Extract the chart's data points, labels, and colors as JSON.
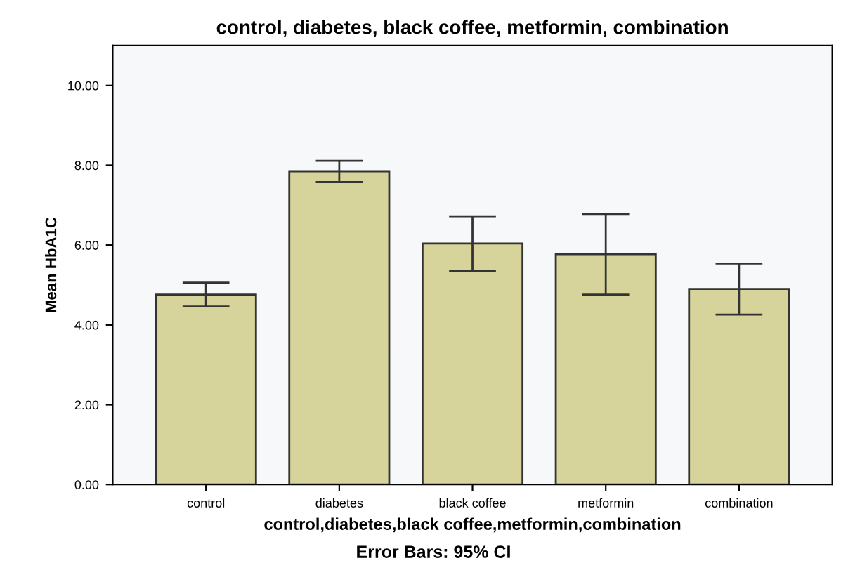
{
  "chart_data": {
    "type": "bar",
    "title": "control, diabetes, black coffee, metformin, combination",
    "xlabel": "control,diabetes,black coffee,metformin,combination",
    "ylabel": "Mean HbA1C",
    "categories": [
      "control",
      "diabetes",
      "black coffee",
      "metformin",
      "combination"
    ],
    "values": [
      4.76,
      7.85,
      6.04,
      5.77,
      4.9
    ],
    "errors": [
      [
        4.46,
        5.06
      ],
      [
        7.58,
        8.11
      ],
      [
        5.36,
        6.72
      ],
      [
        4.76,
        6.78
      ],
      [
        4.26,
        5.54
      ]
    ],
    "color": "#d6d49a",
    "ylim": [
      0,
      11
    ],
    "yticks": [
      {
        "value": 0,
        "label": "0.00"
      },
      {
        "value": 2,
        "label": "2.00"
      },
      {
        "value": 4,
        "label": "4.00"
      },
      {
        "value": 6,
        "label": "6.00"
      },
      {
        "value": 8,
        "label": "8.00"
      },
      {
        "value": 10,
        "label": "10.00"
      }
    ],
    "grid": false,
    "annotations": [
      "Error Bars: 95% CI"
    ]
  }
}
